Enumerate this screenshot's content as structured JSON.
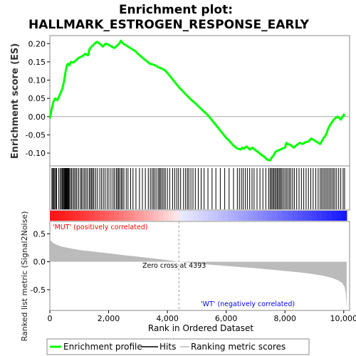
{
  "colors": {
    "es_line": "#00ff00",
    "hit": "#000000",
    "metric_fill": "#bbbbbb",
    "zero_line": "#aaaaaa",
    "pos_label": "#ff0000",
    "neg_label": "#0000ff",
    "frame": "#888888"
  },
  "chart_data": [
    {
      "type": "line",
      "title": "Enrichment plot:",
      "subtitle": "HALLMARK_ESTROGEN_RESPONSE_EARLY",
      "ylabel": "Enrichment score (ES)",
      "xlim": [
        0,
        10200
      ],
      "ylim": [
        -0.135,
        0.222
      ],
      "yticks": [
        0.2,
        0.15,
        0.1,
        0.05,
        0.0,
        -0.05,
        -0.1
      ],
      "ytick_labels": [
        "0.20",
        "0.15",
        "0.10",
        "0.05",
        "0.00",
        "-0.05",
        "-0.10"
      ],
      "series": [
        {
          "x": [
            0,
            60,
            120,
            180,
            260,
            340,
            420,
            480,
            540,
            580,
            620,
            660,
            720,
            800,
            900,
            1000,
            1100,
            1200,
            1300,
            1350,
            1420,
            1500,
            1600,
            1700,
            1800,
            1900,
            2000,
            2100,
            2200,
            2300,
            2360,
            2420,
            2500,
            2600,
            2700,
            2800,
            2900,
            3000,
            3100,
            3200,
            3300,
            3400,
            3500,
            3600,
            3700,
            3800,
            3900,
            4000,
            4100,
            4200,
            4300,
            4400,
            4500,
            4600,
            4700,
            4800,
            4900,
            5000,
            5100,
            5200,
            5300,
            5400,
            5500,
            5600,
            5700,
            5800,
            5900,
            6000,
            6100,
            6200,
            6300,
            6400,
            6500,
            6550,
            6600,
            6700,
            6800,
            6900,
            7000,
            7100,
            7200,
            7300,
            7400,
            7500,
            7550,
            7600,
            7650,
            7700,
            7800,
            7900,
            8000,
            8050,
            8100,
            8200,
            8300,
            8400,
            8500,
            8600,
            8700,
            8800,
            8900,
            9000,
            9100,
            9200,
            9250,
            9300,
            9350,
            9400,
            9450,
            9500,
            9600,
            9700,
            9800,
            9900,
            10000,
            10050
          ],
          "y": [
            -0.005,
            0.02,
            0.04,
            0.05,
            0.045,
            0.06,
            0.075,
            0.095,
            0.125,
            0.14,
            0.145,
            0.14,
            0.15,
            0.148,
            0.155,
            0.162,
            0.165,
            0.172,
            0.168,
            0.185,
            0.192,
            0.198,
            0.205,
            0.2,
            0.192,
            0.2,
            0.197,
            0.192,
            0.188,
            0.195,
            0.2,
            0.208,
            0.2,
            0.195,
            0.19,
            0.185,
            0.18,
            0.172,
            0.165,
            0.158,
            0.152,
            0.145,
            0.143,
            0.14,
            0.135,
            0.132,
            0.128,
            0.12,
            0.11,
            0.1,
            0.09,
            0.08,
            0.072,
            0.063,
            0.055,
            0.047,
            0.04,
            0.033,
            0.025,
            0.017,
            0.01,
            0.002,
            -0.008,
            -0.018,
            -0.028,
            -0.038,
            -0.048,
            -0.058,
            -0.066,
            -0.075,
            -0.083,
            -0.088,
            -0.09,
            -0.085,
            -0.088,
            -0.082,
            -0.09,
            -0.085,
            -0.092,
            -0.098,
            -0.105,
            -0.11,
            -0.118,
            -0.12,
            -0.112,
            -0.108,
            -0.1,
            -0.095,
            -0.092,
            -0.088,
            -0.085,
            -0.072,
            -0.075,
            -0.078,
            -0.085,
            -0.078,
            -0.072,
            -0.075,
            -0.07,
            -0.068,
            -0.06,
            -0.065,
            -0.07,
            -0.075,
            -0.068,
            -0.06,
            -0.055,
            -0.05,
            -0.038,
            -0.028,
            -0.015,
            -0.005,
            0.0,
            -0.008,
            0.005,
            0.003
          ]
        }
      ]
    },
    {
      "type": "hits",
      "xlim": [
        0,
        10200
      ],
      "hit_ranks": [
        70,
        100,
        130,
        165,
        200,
        230,
        300,
        350,
        390,
        420,
        450,
        480,
        500,
        520,
        540,
        560,
        580,
        600,
        620,
        640,
        660,
        700,
        740,
        790,
        830,
        880,
        920,
        980,
        1040,
        1080,
        1130,
        1180,
        1230,
        1280,
        1340,
        1380,
        1420,
        1460,
        1500,
        1560,
        1620,
        1700,
        1760,
        1820,
        1880,
        1950,
        2010,
        2080,
        2150,
        2200,
        2260,
        2300,
        2340,
        2380,
        2430,
        2470,
        2520,
        2600,
        2660,
        2750,
        2830,
        2930,
        3050,
        3150,
        3250,
        3350,
        3420,
        3480,
        3530,
        3580,
        3640,
        3700,
        3740,
        3780,
        3830,
        3880,
        3930,
        4000,
        4080,
        4180,
        4250,
        4320,
        4380,
        4450,
        4550,
        4620,
        4680,
        4730,
        4800,
        4870,
        4950,
        5050,
        5150,
        5250,
        5380,
        5520,
        5650,
        5800,
        5950,
        6100,
        6250,
        6380,
        6450,
        6520,
        6580,
        6650,
        6720,
        6800,
        6880,
        6950,
        7050,
        7150,
        7250,
        7350,
        7450,
        7500,
        7540,
        7580,
        7620,
        7660,
        7700,
        7740,
        7780,
        7820,
        7860,
        7900,
        7950,
        8000,
        8050,
        8100,
        8150,
        8200,
        8260,
        8320,
        8400,
        8480,
        8560,
        8640,
        8720,
        8800,
        8880,
        8960,
        9050,
        9130,
        9200,
        9250,
        9300,
        9350,
        9400,
        9450,
        9500,
        9550,
        9600,
        9650,
        9700,
        9760,
        9830,
        9900,
        9980,
        10030
      ]
    },
    {
      "type": "area",
      "ylabel": "Ranked list metric (Signal2Noise)",
      "xlabel": "Rank in Ordered Dataset",
      "xlim": [
        0,
        10200
      ],
      "ylim": [
        -0.87,
        0.72
      ],
      "yticks": [
        0.5,
        0.0,
        -0.5
      ],
      "ytick_labels": [
        "0.5",
        "0.0",
        "-0.5"
      ],
      "xticks": [
        0,
        2000,
        4000,
        6000,
        8000,
        10000
      ],
      "xtick_labels": [
        "0",
        "2,000",
        "4,000",
        "6,000",
        "8,000",
        "10,000"
      ],
      "zero_cross": 4393,
      "n_genes": 10100,
      "pos_label": "'MUT' (positively correlated)",
      "neg_label": "'WT' (negatively correlated)",
      "zero_cross_label": "Zero cross at 4393",
      "x": [
        0,
        30,
        100,
        200,
        400,
        700,
        1000,
        1500,
        2000,
        2500,
        3000,
        3500,
        4000,
        4393,
        5000,
        5500,
        6000,
        6500,
        7000,
        7500,
        8000,
        8500,
        9000,
        9300,
        9600,
        9800,
        9950,
        10030,
        10070,
        10090,
        10100
      ],
      "values": [
        0.42,
        0.38,
        0.34,
        0.31,
        0.27,
        0.24,
        0.21,
        0.18,
        0.15,
        0.12,
        0.09,
        0.06,
        0.03,
        0.0,
        -0.03,
        -0.055,
        -0.075,
        -0.095,
        -0.115,
        -0.14,
        -0.165,
        -0.19,
        -0.225,
        -0.25,
        -0.29,
        -0.33,
        -0.38,
        -0.45,
        -0.56,
        -0.72,
        -0.85
      ]
    }
  ],
  "legend": {
    "es_label": "Enrichment profile",
    "hits_label": "Hits",
    "metric_label": "Ranking metric scores"
  }
}
